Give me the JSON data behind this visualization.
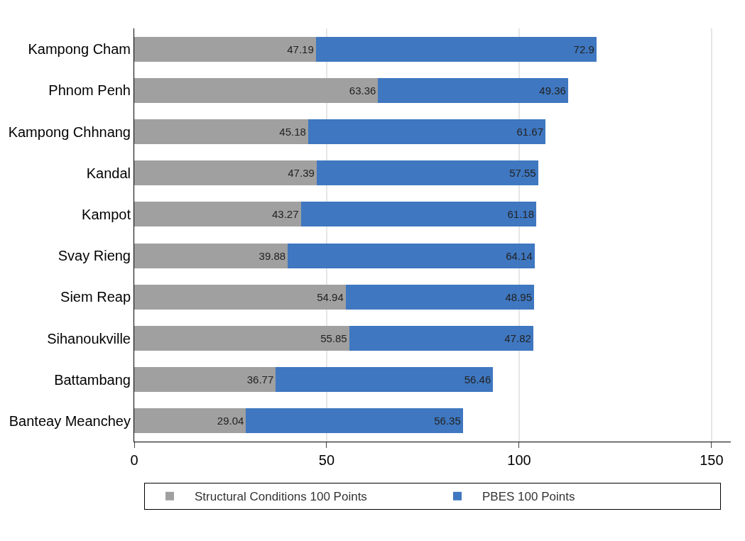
{
  "chart_data": {
    "type": "bar",
    "orientation": "horizontal",
    "stacked": true,
    "categories": [
      "Kampong Cham",
      "Phnom Penh",
      "Kampong Chhnang",
      "Kandal",
      "Kampot",
      "Svay Rieng",
      "Siem Reap",
      "Sihanoukville",
      "Battambang",
      "Banteay Meanchey"
    ],
    "series": [
      {
        "name": "Structural Conditions 100 Points",
        "color": "#a0a0a0",
        "values": [
          47.19,
          63.36,
          45.18,
          47.39,
          43.27,
          39.88,
          54.94,
          55.85,
          36.77,
          29.04
        ]
      },
      {
        "name": "PBES 100 Points",
        "color": "#3f77c0",
        "values": [
          72.9,
          49.36,
          61.67,
          57.55,
          61.18,
          64.14,
          48.95,
          47.82,
          56.46,
          56.35
        ]
      }
    ],
    "xlim": [
      0,
      155
    ],
    "xticks": [
      0,
      50,
      100,
      150
    ],
    "grid": "x",
    "legend": "bottom",
    "data_labels": true
  }
}
